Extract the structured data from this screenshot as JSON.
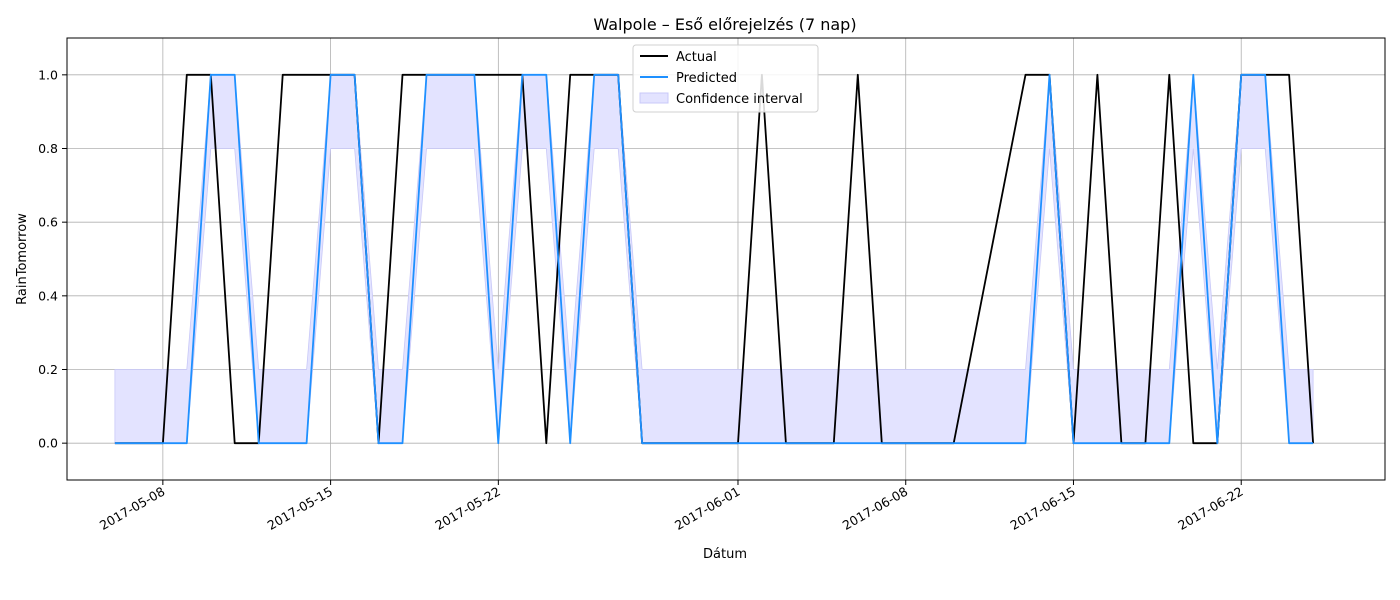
{
  "chart_data": {
    "type": "line",
    "title": "Walpole – Eső előrejelzés (7 nap)",
    "xlabel": "Dátum",
    "ylabel": "RainTomorrow",
    "xlim": [
      "2017-05-04",
      "2017-06-28"
    ],
    "ylim": [
      -0.1,
      1.1
    ],
    "yticks": [
      0.0,
      0.2,
      0.4,
      0.6,
      0.8,
      1.0
    ],
    "ytick_labels": [
      "0.0",
      "0.2",
      "0.4",
      "0.6",
      "0.8",
      "1.0"
    ],
    "xticks": [
      "2017-05-08",
      "2017-05-15",
      "2017-05-22",
      "2017-06-01",
      "2017-06-08",
      "2017-06-15",
      "2017-06-22"
    ],
    "grid": true,
    "legend_position": "top-center",
    "colors": {
      "actual": "#000000",
      "predicted": "#1e90ff",
      "confidence": "#e3e3ff",
      "confidence_edge": "#c8c8f8"
    },
    "series": [
      {
        "name": "Actual",
        "x": [
          "2017-05-06",
          "2017-05-07",
          "2017-05-08",
          "2017-05-09",
          "2017-05-10",
          "2017-05-11",
          "2017-05-12",
          "2017-05-13",
          "2017-05-14",
          "2017-05-15",
          "2017-05-16",
          "2017-05-17",
          "2017-05-18",
          "2017-05-19",
          "2017-05-20",
          "2017-05-21",
          "2017-05-22",
          "2017-05-23",
          "2017-05-24",
          "2017-05-25",
          "2017-05-26",
          "2017-05-27",
          "2017-05-28",
          "2017-06-01",
          "2017-06-02",
          "2017-06-03",
          "2017-06-05",
          "2017-06-06",
          "2017-06-07",
          "2017-06-10",
          "2017-06-13",
          "2017-06-14",
          "2017-06-15",
          "2017-06-16",
          "2017-06-17",
          "2017-06-18",
          "2017-06-19",
          "2017-06-20",
          "2017-06-21",
          "2017-06-22",
          "2017-06-23",
          "2017-06-24",
          "2017-06-25"
        ],
        "y": [
          0,
          0,
          0,
          1,
          1,
          0,
          0,
          1,
          1,
          1,
          1,
          0,
          1,
          1,
          1,
          1,
          1,
          1,
          0,
          1,
          1,
          1,
          0,
          0,
          1,
          0,
          0,
          1,
          0,
          0,
          1,
          1,
          0,
          1,
          0,
          0,
          1,
          0,
          0,
          1,
          1,
          1,
          0
        ]
      },
      {
        "name": "Predicted",
        "x": [
          "2017-05-06",
          "2017-05-07",
          "2017-05-08",
          "2017-05-09",
          "2017-05-10",
          "2017-05-11",
          "2017-05-12",
          "2017-05-13",
          "2017-05-14",
          "2017-05-15",
          "2017-05-16",
          "2017-05-17",
          "2017-05-18",
          "2017-05-19",
          "2017-05-20",
          "2017-05-21",
          "2017-05-22",
          "2017-05-23",
          "2017-05-24",
          "2017-05-25",
          "2017-05-26",
          "2017-05-27",
          "2017-05-28",
          "2017-06-01",
          "2017-06-02",
          "2017-06-03",
          "2017-06-05",
          "2017-06-06",
          "2017-06-07",
          "2017-06-10",
          "2017-06-13",
          "2017-06-14",
          "2017-06-15",
          "2017-06-16",
          "2017-06-17",
          "2017-06-18",
          "2017-06-19",
          "2017-06-20",
          "2017-06-21",
          "2017-06-22",
          "2017-06-23",
          "2017-06-24",
          "2017-06-25"
        ],
        "y": [
          0,
          0,
          0,
          0,
          1,
          1,
          0,
          0,
          0,
          1,
          1,
          0,
          0,
          1,
          1,
          1,
          0,
          1,
          1,
          0,
          1,
          1,
          0,
          0,
          0,
          0,
          0,
          0,
          0,
          0,
          0,
          1,
          0,
          0,
          0,
          0,
          0,
          1,
          0,
          1,
          1,
          0,
          0
        ]
      },
      {
        "name": "Confidence interval",
        "x": [
          "2017-05-06",
          "2017-05-07",
          "2017-05-08",
          "2017-05-09",
          "2017-05-10",
          "2017-05-11",
          "2017-05-12",
          "2017-05-13",
          "2017-05-14",
          "2017-05-15",
          "2017-05-16",
          "2017-05-17",
          "2017-05-18",
          "2017-05-19",
          "2017-05-20",
          "2017-05-21",
          "2017-05-22",
          "2017-05-23",
          "2017-05-24",
          "2017-05-25",
          "2017-05-26",
          "2017-05-27",
          "2017-05-28",
          "2017-06-01",
          "2017-06-02",
          "2017-06-03",
          "2017-06-05",
          "2017-06-06",
          "2017-06-07",
          "2017-06-10",
          "2017-06-13",
          "2017-06-14",
          "2017-06-15",
          "2017-06-16",
          "2017-06-17",
          "2017-06-18",
          "2017-06-19",
          "2017-06-20",
          "2017-06-21",
          "2017-06-22",
          "2017-06-23",
          "2017-06-24",
          "2017-06-25"
        ],
        "lower": [
          0,
          0,
          0,
          0,
          0.8,
          0.8,
          0,
          0,
          0,
          0.8,
          0.8,
          0,
          0,
          0.8,
          0.8,
          0.8,
          0,
          0.8,
          0.8,
          0,
          0.8,
          0.8,
          0,
          0,
          0,
          0,
          0,
          0,
          0,
          0,
          0,
          0.8,
          0,
          0,
          0,
          0,
          0,
          0.8,
          0,
          0.8,
          0.8,
          0,
          0
        ],
        "upper": [
          0.2,
          0.2,
          0.2,
          0.2,
          1,
          1,
          0.2,
          0.2,
          0.2,
          1,
          1,
          0.2,
          0.2,
          1,
          1,
          1,
          0.2,
          1,
          1,
          0.2,
          1,
          1,
          0.2,
          0.2,
          0.2,
          0.2,
          0.2,
          0.2,
          0.2,
          0.2,
          0.2,
          1,
          0.2,
          0.2,
          0.2,
          0.2,
          0.2,
          1,
          0.2,
          1,
          1,
          0.2,
          0.2
        ]
      }
    ]
  }
}
